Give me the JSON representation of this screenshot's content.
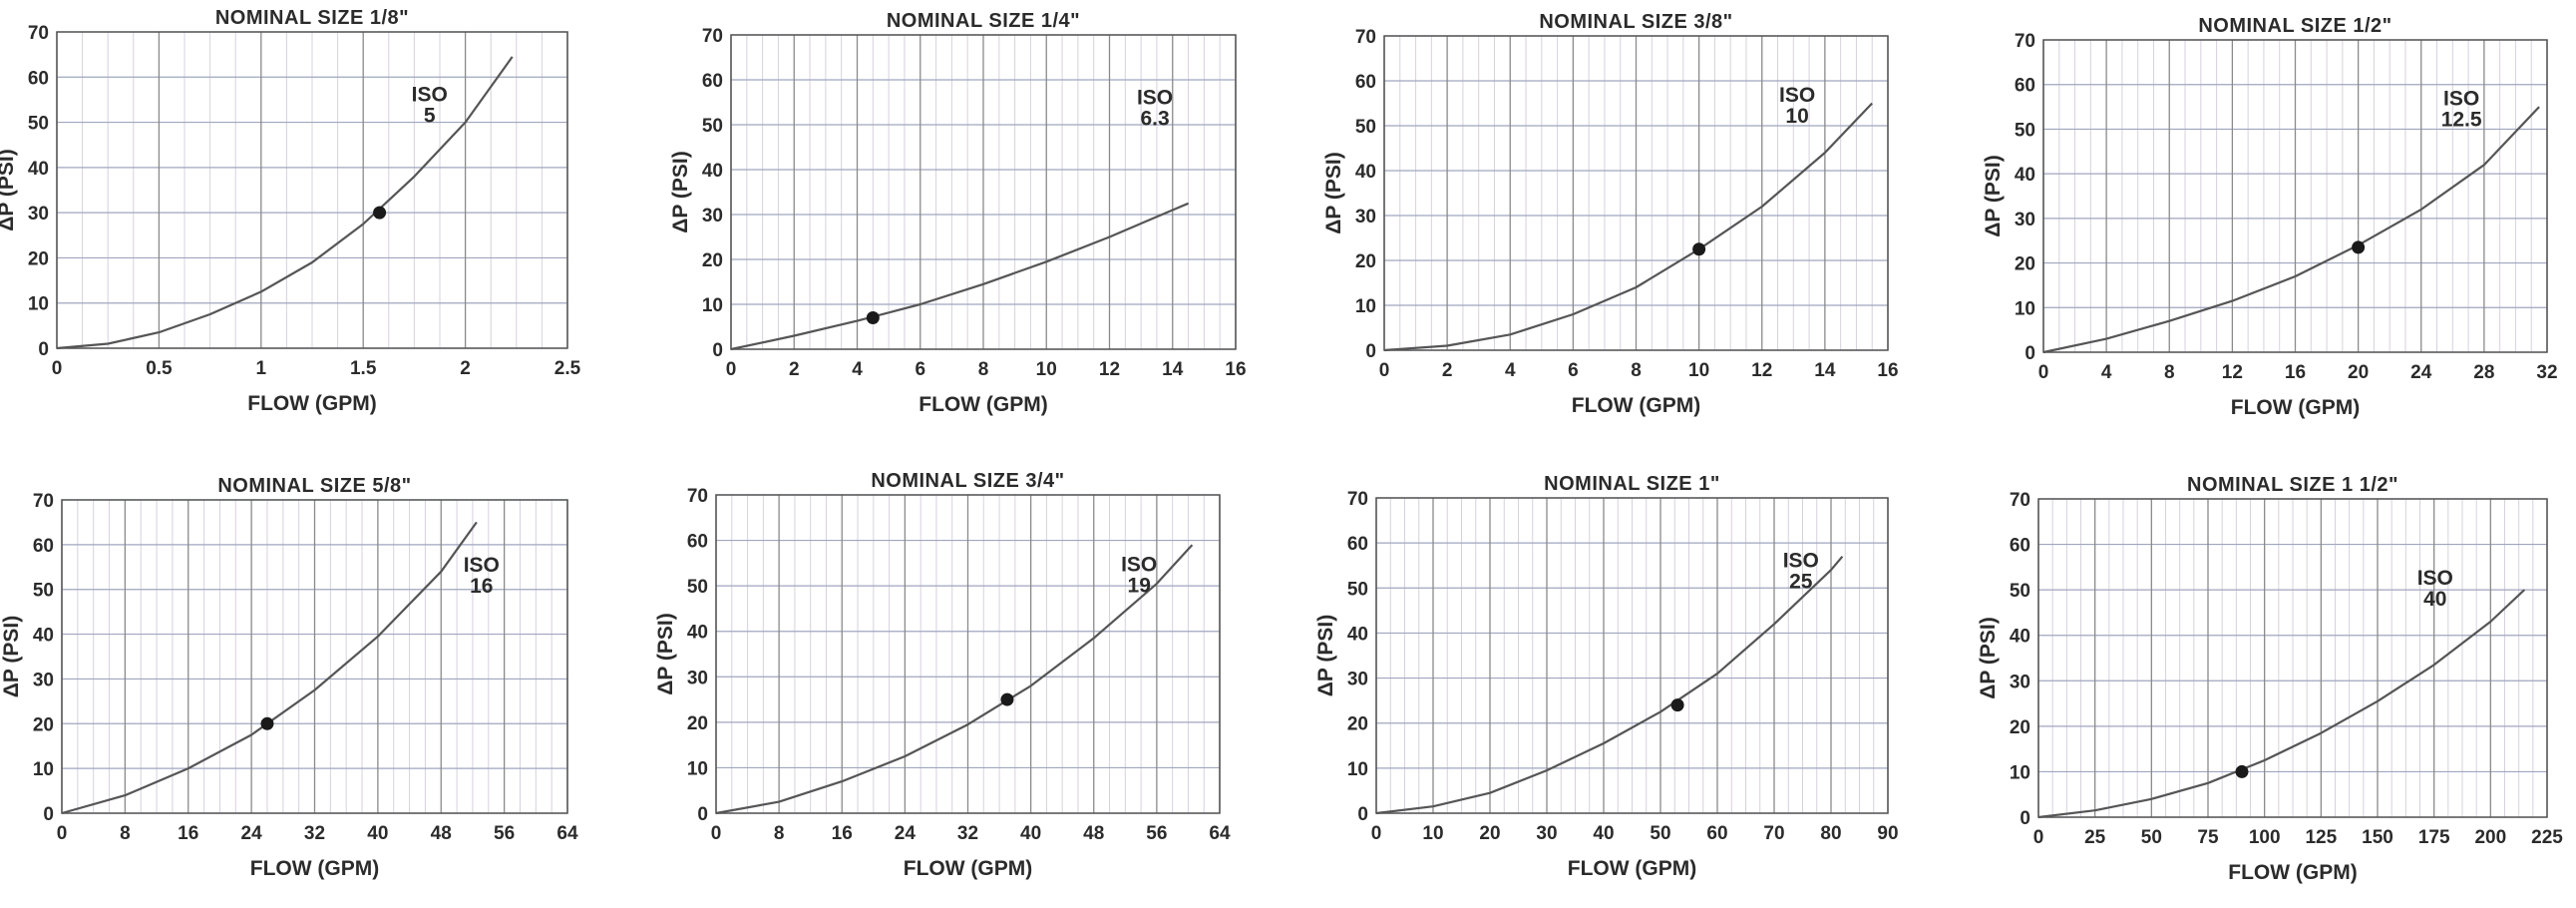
{
  "chart_data": [
    {
      "type": "line",
      "title": "NOMINAL SIZE 1/8\"",
      "xlabel": "FLOW (GPM)",
      "ylabel": "ΔP (PSI)",
      "xlim": [
        0,
        2.5
      ],
      "ylim": [
        0,
        70
      ],
      "xticks": [
        "0",
        "0.5",
        "1",
        "1.5",
        "2",
        "2.5"
      ],
      "yticks": [
        "0",
        "10",
        "20",
        "30",
        "40",
        "50",
        "60",
        "70"
      ],
      "grid": true,
      "series": [
        {
          "name": "ISO 5",
          "x": [
            0,
            0.25,
            0.5,
            0.75,
            1.0,
            1.25,
            1.5,
            1.75,
            2.0,
            2.23
          ],
          "y": [
            0,
            1,
            3.5,
            7.5,
            12.5,
            19,
            27.5,
            38,
            50,
            64.5
          ]
        }
      ],
      "marker": {
        "x": 1.58,
        "y": 30
      },
      "label_lines": [
        "ISO",
        "5"
      ]
    },
    {
      "type": "line",
      "title": "NOMINAL SIZE 1/4\"",
      "xlabel": "FLOW (GPM)",
      "ylabel": "ΔP (PSI)",
      "xlim": [
        0,
        16
      ],
      "ylim": [
        0,
        70
      ],
      "xticks": [
        "0",
        "2",
        "4",
        "6",
        "8",
        "10",
        "12",
        "14",
        "16"
      ],
      "yticks": [
        "0",
        "10",
        "20",
        "30",
        "40",
        "50",
        "60",
        "70"
      ],
      "grid": true,
      "series": [
        {
          "name": "ISO 6.3",
          "x": [
            0,
            2,
            4,
            6,
            8,
            10,
            12,
            14,
            14.5
          ],
          "y": [
            0,
            3,
            6.3,
            10,
            14.5,
            19.5,
            25,
            31,
            32.5
          ]
        }
      ],
      "marker": {
        "x": 4.5,
        "y": 7
      },
      "label_lines": [
        "ISO",
        "6.3"
      ]
    },
    {
      "type": "line",
      "title": "NOMINAL SIZE 3/8\"",
      "xlabel": "FLOW (GPM)",
      "ylabel": "ΔP (PSI)",
      "xlim": [
        0,
        16
      ],
      "ylim": [
        0,
        70
      ],
      "xticks": [
        "0",
        "2",
        "4",
        "6",
        "8",
        "10",
        "12",
        "14",
        "16"
      ],
      "yticks": [
        "0",
        "10",
        "20",
        "30",
        "40",
        "50",
        "60",
        "70"
      ],
      "grid": true,
      "series": [
        {
          "name": "ISO 10",
          "x": [
            0,
            2,
            4,
            6,
            8,
            10,
            12,
            14,
            15.5
          ],
          "y": [
            0,
            1,
            3.5,
            8,
            14,
            22.5,
            32,
            44,
            55
          ]
        }
      ],
      "marker": {
        "x": 10,
        "y": 22.5
      },
      "label_lines": [
        "ISO",
        "10"
      ]
    },
    {
      "type": "line",
      "title": "NOMINAL SIZE 1/2\"",
      "xlabel": "FLOW (GPM)",
      "ylabel": "ΔP (PSI)",
      "xlim": [
        0,
        32
      ],
      "ylim": [
        0,
        70
      ],
      "xticks": [
        "0",
        "4",
        "8",
        "12",
        "16",
        "20",
        "24",
        "28",
        "32"
      ],
      "yticks": [
        "0",
        "10",
        "20",
        "30",
        "40",
        "50",
        "60",
        "70"
      ],
      "grid": true,
      "series": [
        {
          "name": "ISO 12.5",
          "x": [
            0,
            4,
            8,
            12,
            16,
            20,
            24,
            28,
            31.5
          ],
          "y": [
            0,
            3,
            7,
            11.5,
            17,
            24,
            32,
            42,
            55
          ]
        }
      ],
      "marker": {
        "x": 20,
        "y": 23.5
      },
      "label_lines": [
        "ISO",
        "12.5"
      ]
    },
    {
      "type": "line",
      "title": "NOMINAL SIZE 5/8\"",
      "xlabel": "FLOW (GPM)",
      "ylabel": "ΔP (PSI)",
      "xlim": [
        0,
        64
      ],
      "ylim": [
        0,
        70
      ],
      "xticks": [
        "0",
        "8",
        "16",
        "24",
        "32",
        "40",
        "48",
        "56",
        "64"
      ],
      "yticks": [
        "0",
        "10",
        "20",
        "30",
        "40",
        "50",
        "60",
        "70"
      ],
      "grid": true,
      "series": [
        {
          "name": "ISO 16",
          "x": [
            0,
            8,
            16,
            24,
            32,
            40,
            48,
            52.5
          ],
          "y": [
            0,
            4,
            10,
            17.5,
            27.5,
            39.5,
            54,
            65
          ]
        }
      ],
      "marker": {
        "x": 26,
        "y": 20
      },
      "label_lines": [
        "ISO",
        "16"
      ]
    },
    {
      "type": "line",
      "title": "NOMINAL SIZE 3/4\"",
      "xlabel": "FLOW (GPM)",
      "ylabel": "ΔP (PSI)",
      "xlim": [
        0,
        64
      ],
      "ylim": [
        0,
        70
      ],
      "xticks": [
        "0",
        "8",
        "16",
        "24",
        "32",
        "40",
        "48",
        "56",
        "64"
      ],
      "yticks": [
        "0",
        "10",
        "20",
        "30",
        "40",
        "50",
        "60",
        "70"
      ],
      "grid": true,
      "series": [
        {
          "name": "ISO 19",
          "x": [
            0,
            8,
            16,
            24,
            32,
            40,
            48,
            56,
            60.5
          ],
          "y": [
            0,
            2.5,
            7,
            12.5,
            19.5,
            28,
            38.5,
            50.5,
            59
          ]
        }
      ],
      "marker": {
        "x": 37,
        "y": 25
      },
      "label_lines": [
        "ISO",
        "19"
      ]
    },
    {
      "type": "line",
      "title": "NOMINAL SIZE 1\"",
      "xlabel": "FLOW (GPM)",
      "ylabel": "ΔP (PSI)",
      "xlim": [
        0,
        90
      ],
      "ylim": [
        0,
        70
      ],
      "xticks": [
        "0",
        "10",
        "20",
        "30",
        "40",
        "50",
        "60",
        "70",
        "80",
        "90"
      ],
      "yticks": [
        "0",
        "10",
        "20",
        "30",
        "40",
        "50",
        "60",
        "70"
      ],
      "grid": true,
      "series": [
        {
          "name": "ISO 25",
          "x": [
            0,
            10,
            20,
            30,
            40,
            50,
            60,
            70,
            80,
            82
          ],
          "y": [
            0,
            1.5,
            4.5,
            9.5,
            15.5,
            22.5,
            31,
            42,
            54,
            57
          ]
        }
      ],
      "marker": {
        "x": 53,
        "y": 24
      },
      "label_lines": [
        "ISO",
        "25"
      ]
    },
    {
      "type": "line",
      "title": "NOMINAL SIZE 1 1/2\"",
      "xlabel": "FLOW (GPM)",
      "ylabel": "ΔP (PSI)",
      "xlim": [
        0,
        225
      ],
      "ylim": [
        0,
        70
      ],
      "xticks": [
        "0",
        "25",
        "50",
        "75",
        "100",
        "125",
        "150",
        "175",
        "200",
        "225"
      ],
      "yticks": [
        "0",
        "10",
        "20",
        "30",
        "40",
        "50",
        "60",
        "70"
      ],
      "grid": true,
      "series": [
        {
          "name": "ISO 40",
          "x": [
            0,
            25,
            50,
            75,
            100,
            125,
            150,
            175,
            200,
            215
          ],
          "y": [
            0,
            1.5,
            4,
            7.5,
            12.5,
            18.5,
            25.5,
            33.5,
            43,
            50
          ]
        }
      ],
      "marker": {
        "x": 90,
        "y": 10
      },
      "label_lines": [
        "ISO",
        "40"
      ]
    }
  ]
}
